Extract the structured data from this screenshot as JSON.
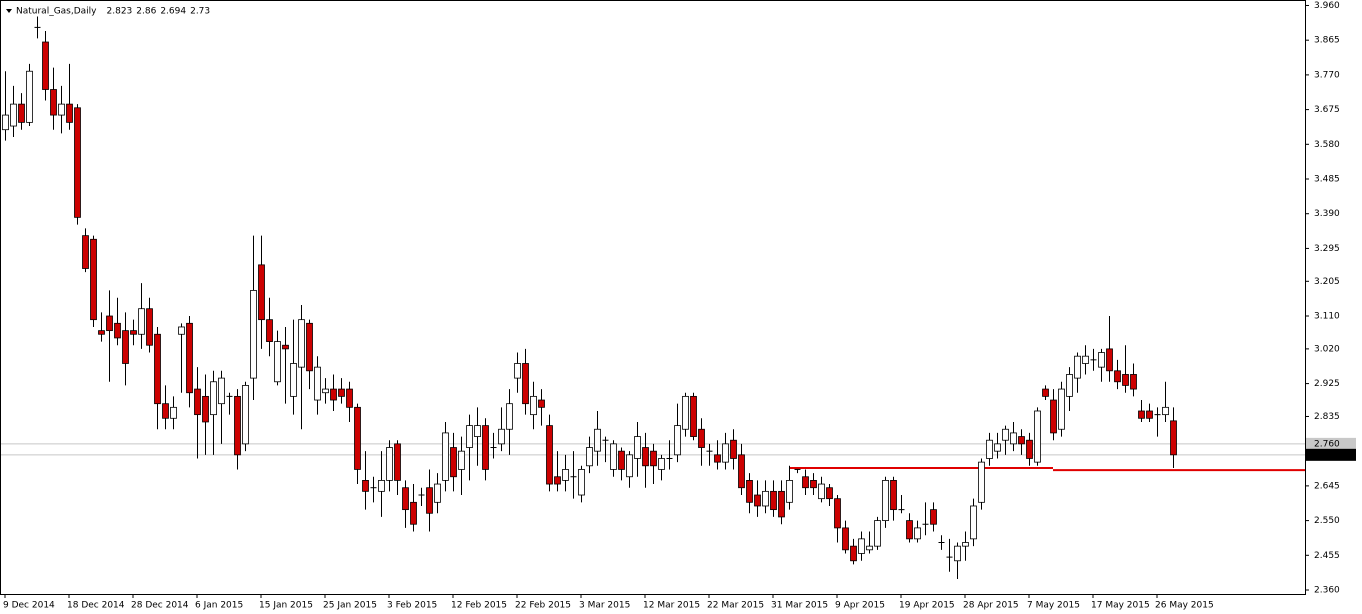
{
  "chart_data": {
    "type": "candlestick",
    "title": "Natural_Gas,Daily",
    "up_color": "#ffffff",
    "down_color": "#cc0000",
    "line_color": "#e00000",
    "ask": 2.76,
    "ask_label": "2.760",
    "ylim": [
      2.36,
      3.975
    ],
    "yticks": [
      {
        "value": 3.96,
        "label": "3.960"
      },
      3.865,
      {
        "value": 3.77,
        "label": "3.770"
      },
      3.675,
      {
        "value": 3.58,
        "label": "3.580"
      },
      3.485,
      {
        "value": 3.39,
        "label": "3.390"
      },
      3.295,
      3.205,
      {
        "value": 3.11,
        "label": "3.110"
      },
      {
        "value": 3.02,
        "label": "3.020"
      },
      2.925,
      2.835,
      2.645,
      {
        "value": 2.55,
        "label": "2.550"
      },
      2.455,
      {
        "value": 2.36,
        "label": "2.360"
      }
    ],
    "support_lines": [
      {
        "value": 2.694,
        "start": 98
      },
      {
        "value": 2.688,
        "start": 131
      }
    ],
    "categories": [
      "9 Dec 2014",
      null,
      null,
      null,
      null,
      null,
      null,
      null,
      "18 Dec 2014",
      null,
      null,
      null,
      null,
      null,
      null,
      null,
      "28 Dec 2014",
      null,
      null,
      null,
      null,
      null,
      null,
      null,
      "6 Jan 2015",
      null,
      null,
      null,
      null,
      null,
      null,
      null,
      "15 Jan 2015",
      null,
      null,
      null,
      null,
      null,
      null,
      null,
      "25 Jan 2015",
      null,
      null,
      null,
      null,
      null,
      null,
      null,
      "3 Feb 2015",
      null,
      null,
      null,
      null,
      null,
      null,
      null,
      "12 Feb 2015",
      null,
      null,
      null,
      null,
      null,
      null,
      null,
      "22 Feb 2015",
      null,
      null,
      null,
      null,
      null,
      null,
      null,
      "3 Mar 2015",
      null,
      null,
      null,
      null,
      null,
      null,
      null,
      "12 Mar 2015",
      null,
      null,
      null,
      null,
      null,
      null,
      null,
      "22 Mar 2015",
      null,
      null,
      null,
      null,
      null,
      null,
      null,
      "31 Mar 2015",
      null,
      null,
      null,
      null,
      null,
      null,
      null,
      "9 Apr 2015",
      null,
      null,
      null,
      null,
      null,
      null,
      null,
      "19 Apr 2015",
      null,
      null,
      null,
      null,
      null,
      null,
      null,
      "28 Apr 2015",
      null,
      null,
      null,
      null,
      null,
      null,
      null,
      "7 May 2015",
      null,
      null,
      null,
      null,
      null,
      null,
      null,
      "17 May 2015",
      null,
      null,
      null,
      null,
      null,
      null,
      null,
      "26 May 2015",
      null,
      null
    ],
    "candles": [
      [
        3.62,
        3.78,
        3.59,
        3.66
      ],
      [
        3.63,
        3.74,
        3.6,
        3.69
      ],
      [
        3.69,
        3.72,
        3.62,
        3.64
      ],
      [
        3.64,
        3.8,
        3.63,
        3.78
      ],
      [
        3.9,
        3.93,
        3.87,
        3.9
      ],
      [
        3.86,
        3.89,
        3.7,
        3.73
      ],
      [
        3.73,
        3.79,
        3.62,
        3.66
      ],
      [
        3.66,
        3.74,
        3.61,
        3.69
      ],
      [
        3.69,
        3.8,
        3.62,
        3.64
      ],
      [
        3.68,
        3.69,
        3.36,
        3.38
      ],
      [
        3.33,
        3.35,
        3.23,
        3.24
      ],
      [
        3.32,
        3.33,
        3.08,
        3.1
      ],
      [
        3.07,
        3.12,
        3.04,
        3.06
      ],
      [
        3.11,
        3.18,
        2.93,
        3.07
      ],
      [
        3.09,
        3.16,
        3.03,
        3.05
      ],
      [
        3.07,
        3.12,
        2.92,
        2.98
      ],
      [
        3.07,
        3.1,
        3.03,
        3.06
      ],
      [
        3.06,
        3.2,
        3.02,
        3.13
      ],
      [
        3.13,
        3.16,
        3.01,
        3.03
      ],
      [
        3.06,
        3.08,
        2.8,
        2.87
      ],
      [
        2.87,
        2.92,
        2.8,
        2.83
      ],
      [
        2.83,
        2.89,
        2.8,
        2.86
      ],
      [
        3.06,
        3.09,
        2.9,
        3.08
      ],
      [
        3.09,
        3.11,
        2.86,
        2.9
      ],
      [
        2.91,
        2.97,
        2.72,
        2.84
      ],
      [
        2.89,
        2.95,
        2.73,
        2.82
      ],
      [
        2.84,
        2.96,
        2.73,
        2.93
      ],
      [
        2.87,
        2.96,
        2.76,
        2.94
      ],
      [
        2.89,
        2.9,
        2.84,
        2.89
      ],
      [
        2.89,
        2.91,
        2.69,
        2.73
      ],
      [
        2.76,
        2.93,
        2.74,
        2.92
      ],
      [
        2.94,
        3.33,
        2.88,
        3.18
      ],
      [
        3.25,
        3.33,
        3.02,
        3.1
      ],
      [
        3.1,
        3.16,
        3.0,
        3.04
      ],
      [
        2.93,
        3.07,
        2.92,
        3.04
      ],
      [
        3.03,
        3.08,
        2.87,
        3.02
      ],
      [
        2.89,
        3.1,
        2.84,
        2.98
      ],
      [
        2.97,
        3.14,
        2.8,
        3.1
      ],
      [
        3.09,
        3.1,
        2.91,
        2.96
      ],
      [
        2.88,
        3.0,
        2.84,
        2.97
      ],
      [
        2.9,
        2.94,
        2.87,
        2.91
      ],
      [
        2.91,
        2.95,
        2.85,
        2.88
      ],
      [
        2.91,
        2.94,
        2.87,
        2.89
      ],
      [
        2.91,
        2.93,
        2.82,
        2.86
      ],
      [
        2.86,
        2.87,
        2.65,
        2.69
      ],
      [
        2.66,
        2.74,
        2.58,
        2.63
      ],
      [
        2.64,
        2.67,
        2.6,
        2.64
      ],
      [
        2.63,
        2.74,
        2.56,
        2.66
      ],
      [
        2.66,
        2.77,
        2.63,
        2.75
      ],
      [
        2.76,
        2.77,
        2.62,
        2.66
      ],
      [
        2.64,
        2.66,
        2.53,
        2.58
      ],
      [
        2.6,
        2.65,
        2.52,
        2.54
      ],
      [
        2.62,
        2.64,
        2.59,
        2.62
      ],
      [
        2.64,
        2.69,
        2.52,
        2.57
      ],
      [
        2.6,
        2.68,
        2.57,
        2.65
      ],
      [
        2.66,
        2.82,
        2.63,
        2.79
      ],
      [
        2.75,
        2.79,
        2.63,
        2.67
      ],
      [
        2.69,
        2.78,
        2.62,
        2.74
      ],
      [
        2.75,
        2.84,
        2.66,
        2.81
      ],
      [
        2.78,
        2.86,
        2.7,
        2.81
      ],
      [
        2.81,
        2.83,
        2.66,
        2.69
      ],
      [
        2.75,
        2.79,
        2.72,
        2.75
      ],
      [
        2.76,
        2.86,
        2.74,
        2.8
      ],
      [
        2.8,
        2.91,
        2.73,
        2.87
      ],
      [
        2.94,
        3.01,
        2.9,
        2.98
      ],
      [
        2.98,
        3.02,
        2.84,
        2.87
      ],
      [
        2.84,
        2.93,
        2.8,
        2.89
      ],
      [
        2.88,
        2.91,
        2.81,
        2.86
      ],
      [
        2.81,
        2.84,
        2.63,
        2.65
      ],
      [
        2.67,
        2.74,
        2.63,
        2.65
      ],
      [
        2.66,
        2.73,
        2.63,
        2.69
      ],
      [
        2.67,
        2.74,
        2.61,
        2.67
      ],
      [
        2.62,
        2.7,
        2.6,
        2.69
      ],
      [
        2.7,
        2.78,
        2.68,
        2.75
      ],
      [
        2.74,
        2.85,
        2.7,
        2.8
      ],
      [
        2.77,
        2.78,
        2.71,
        2.77
      ],
      [
        2.69,
        2.77,
        2.67,
        2.76
      ],
      [
        2.74,
        2.75,
        2.66,
        2.69
      ],
      [
        2.67,
        2.74,
        2.64,
        2.73
      ],
      [
        2.72,
        2.82,
        2.67,
        2.78
      ],
      [
        2.75,
        2.79,
        2.64,
        2.7
      ],
      [
        2.74,
        2.76,
        2.65,
        2.7
      ],
      [
        2.69,
        2.73,
        2.66,
        2.72
      ],
      [
        2.72,
        2.77,
        2.69,
        2.72
      ],
      [
        2.73,
        2.87,
        2.71,
        2.81
      ],
      [
        2.8,
        2.9,
        2.78,
        2.89
      ],
      [
        2.89,
        2.9,
        2.77,
        2.78
      ],
      [
        2.8,
        2.83,
        2.7,
        2.75
      ],
      [
        2.74,
        2.76,
        2.7,
        2.74
      ],
      [
        2.73,
        2.77,
        2.69,
        2.71
      ],
      [
        2.71,
        2.79,
        2.69,
        2.76
      ],
      [
        2.77,
        2.8,
        2.69,
        2.72
      ],
      [
        2.73,
        2.76,
        2.62,
        2.64
      ],
      [
        2.66,
        2.68,
        2.57,
        2.6
      ],
      [
        2.62,
        2.66,
        2.56,
        2.59
      ],
      [
        2.59,
        2.66,
        2.57,
        2.63
      ],
      [
        2.63,
        2.66,
        2.56,
        2.58
      ],
      [
        2.63,
        2.66,
        2.54,
        2.56
      ],
      [
        2.6,
        2.7,
        2.58,
        2.66
      ],
      [
        2.69,
        2.69,
        2.68,
        2.69
      ],
      [
        2.67,
        2.69,
        2.62,
        2.64
      ],
      [
        2.66,
        2.68,
        2.62,
        2.64
      ],
      [
        2.61,
        2.67,
        2.6,
        2.65
      ],
      [
        2.64,
        2.65,
        2.59,
        2.61
      ],
      [
        2.61,
        2.62,
        2.49,
        2.53
      ],
      [
        2.53,
        2.55,
        2.46,
        2.47
      ],
      [
        2.48,
        2.5,
        2.43,
        2.44
      ],
      [
        2.46,
        2.52,
        2.44,
        2.5
      ],
      [
        2.47,
        2.52,
        2.46,
        2.48
      ],
      [
        2.48,
        2.56,
        2.47,
        2.55
      ],
      [
        2.55,
        2.67,
        2.53,
        2.66
      ],
      [
        2.66,
        2.67,
        2.55,
        2.58
      ],
      [
        2.58,
        2.62,
        2.57,
        2.58
      ],
      [
        2.55,
        2.57,
        2.49,
        2.5
      ],
      [
        2.5,
        2.55,
        2.49,
        2.53
      ],
      [
        2.54,
        2.6,
        2.51,
        2.54
      ],
      [
        2.58,
        2.6,
        2.52,
        2.54
      ],
      [
        2.49,
        2.51,
        2.47,
        2.49
      ],
      [
        2.45,
        2.5,
        2.41,
        2.45
      ],
      [
        2.44,
        2.49,
        2.39,
        2.48
      ],
      [
        2.48,
        2.52,
        2.44,
        2.49
      ],
      [
        2.5,
        2.61,
        2.48,
        2.59
      ],
      [
        2.6,
        2.72,
        2.58,
        2.71
      ],
      [
        2.72,
        2.79,
        2.7,
        2.77
      ],
      [
        2.74,
        2.79,
        2.72,
        2.76
      ],
      [
        2.77,
        2.81,
        2.73,
        2.8
      ],
      [
        2.76,
        2.82,
        2.74,
        2.79
      ],
      [
        2.78,
        2.8,
        2.73,
        2.76
      ],
      [
        2.77,
        2.79,
        2.7,
        2.72
      ],
      [
        2.71,
        2.86,
        2.7,
        2.85
      ],
      [
        2.91,
        2.92,
        2.88,
        2.89
      ],
      [
        2.88,
        2.91,
        2.77,
        2.79
      ],
      [
        2.8,
        2.93,
        2.78,
        2.91
      ],
      [
        2.89,
        2.97,
        2.85,
        2.95
      ],
      [
        2.94,
        3.01,
        2.9,
        3.0
      ],
      [
        2.98,
        3.03,
        2.95,
        3.0
      ],
      [
        2.99,
        3.02,
        2.96,
        2.99
      ],
      [
        2.97,
        3.02,
        2.93,
        3.01
      ],
      [
        3.02,
        3.11,
        2.93,
        2.96
      ],
      [
        2.96,
        2.99,
        2.91,
        2.93
      ],
      [
        2.95,
        3.03,
        2.9,
        2.92
      ],
      [
        2.95,
        2.98,
        2.89,
        2.91
      ],
      [
        2.85,
        2.88,
        2.82,
        2.83
      ],
      [
        2.85,
        2.87,
        2.82,
        2.83
      ],
      [
        2.84,
        2.86,
        2.78,
        2.84
      ],
      [
        2.84,
        2.93,
        2.82,
        2.86
      ],
      [
        2.823,
        2.86,
        2.694,
        2.73
      ]
    ]
  }
}
